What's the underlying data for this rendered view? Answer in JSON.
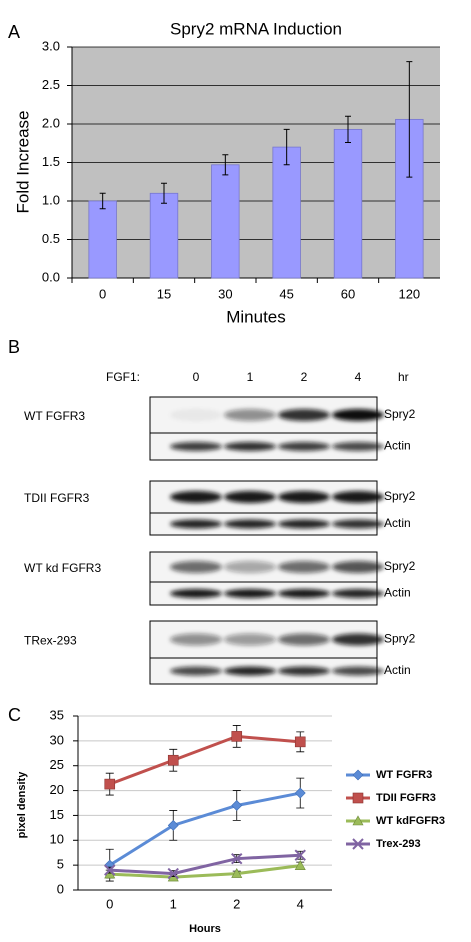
{
  "chart_data": [
    {
      "type": "bar",
      "panel_label": "A",
      "title": "Spry2 mRNA Induction",
      "xlabel": "Minutes",
      "ylabel": "Fold Increase",
      "categories": [
        "0",
        "15",
        "30",
        "45",
        "60",
        "120"
      ],
      "values": [
        1.0,
        1.1,
        1.47,
        1.7,
        1.93,
        2.06
      ],
      "errors": [
        0.1,
        0.13,
        0.13,
        0.23,
        0.17,
        0.75
      ],
      "color": "#9999ff",
      "ylim": [
        0,
        3
      ],
      "yticks": [
        {
          "value": 0,
          "label": "0.0"
        },
        0.5,
        {
          "value": 1,
          "label": "1.0"
        },
        1.5,
        {
          "value": 2,
          "label": "2.0"
        },
        2.5,
        {
          "value": 3,
          "label": "3.0"
        }
      ],
      "grid": true
    },
    {
      "type": "line",
      "panel_label": "C",
      "xlabel": "Hours",
      "ylabel": "pixel density",
      "categories": [
        "0",
        "1",
        "2",
        "4"
      ],
      "series": [
        {
          "name": "WT FGFR3",
          "color": "#5b8bd6",
          "marker": "diamond",
          "values": [
            5,
            13,
            17,
            19.5
          ],
          "errors": [
            3.2,
            3,
            3,
            3
          ]
        },
        {
          "name": "TDII FGFR3",
          "color": "#c0504d",
          "marker": "square",
          "values": [
            21.3,
            26.1,
            30.9,
            29.8
          ],
          "errors": [
            2.2,
            2.2,
            2.2,
            2
          ]
        },
        {
          "name": "WT kdFGFR3",
          "color": "#9bbb59",
          "marker": "triangle",
          "values": [
            3.2,
            2.6,
            3.3,
            4.9
          ],
          "errors": [
            0.8,
            0.5,
            0.5,
            0.7
          ]
        },
        {
          "name": "Trex-293",
          "color": "#8064a2",
          "marker": "x",
          "values": [
            4,
            3.3,
            6.3,
            7
          ],
          "errors": [
            0.6,
            0.6,
            0.8,
            0.8
          ]
        }
      ],
      "ylim": [
        0,
        35
      ],
      "yticks": [
        0,
        5,
        10,
        15,
        20,
        25,
        30,
        35
      ],
      "grid": true,
      "legend": "right"
    }
  ],
  "blot": {
    "panel_label": "B",
    "treatment": "FGF1:",
    "times": [
      "0",
      "1",
      "2",
      "4"
    ],
    "unit": "hr",
    "groups": [
      {
        "name": "WT FGFR3",
        "bands": [
          "Spry2",
          "Actin"
        ]
      },
      {
        "name": "TDII FGFR3",
        "bands": [
          "Spry2",
          "Actin"
        ]
      },
      {
        "name": "WT kd FGFR3",
        "bands": [
          "Spry2",
          "Actin"
        ]
      },
      {
        "name": "TRex-293",
        "bands": [
          "Spry2",
          "Actin"
        ]
      }
    ]
  }
}
